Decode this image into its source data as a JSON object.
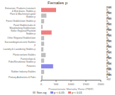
{
  "chart_data": {
    "type": "bar",
    "orientation": "horizontal",
    "title": "Females p",
    "xlabel": "Proportionate Mortality Ratio (PMR)",
    "categories": [
      "Extraction, Products,Livestock & Bird drains, Stables p",
      "Plant & Machinery/capital Stables p",
      "Forest Stables/own Stables p",
      "Panel Stables/sales & Bloodstoking Stables/own",
      "Roller Regional/Plasfield Stables p",
      "Other Regional Stables/own",
      "Surroundings/concrete Stables p",
      "Laundry & Laundering Stables p",
      "Plasticise/wire Stables",
      "Partnerships & Pubs/Residential Stables p",
      "Potteries",
      "Rubber Industry Stables",
      "Primary Authorities & Pubs"
    ],
    "values": [
      500,
      175,
      100,
      50,
      350,
      100,
      100,
      75,
      150,
      100,
      400,
      100,
      50
    ],
    "colors": [
      "#f08080",
      "#c0c0c0",
      "#c0c0c0",
      "#c0c0c0",
      "#f08080",
      "#c0c0c0",
      "#c0c0c0",
      "#c0c0c0",
      "#c0c0c0",
      "#c0c0c0",
      "#8888ee",
      "#c0c0c0",
      "#c0c0c0"
    ],
    "annotations": [
      "PMR 0 >0",
      "PMR 0 >1",
      "PMR 0 >2",
      "PMR 0 >3",
      "PMR 0 >4",
      "PMR 0 >5",
      "PMR 0 >6",
      "PMR 0 >7",
      "PMR 0 >8",
      "PMR 0 >9",
      "PMR 0 >10",
      "PMR 0 >11",
      "PMR 0 >12"
    ],
    "legend": "bottom",
    "legend_labels": [
      "Non-sig",
      "p < 0.05",
      "p < 0.01"
    ],
    "legend_colors": [
      "#c0c0c0",
      "#8888ee",
      "#f08080"
    ],
    "xlim": [
      0,
      2000
    ],
    "xticks": [
      0,
      500,
      1000,
      1500,
      2000
    ]
  }
}
